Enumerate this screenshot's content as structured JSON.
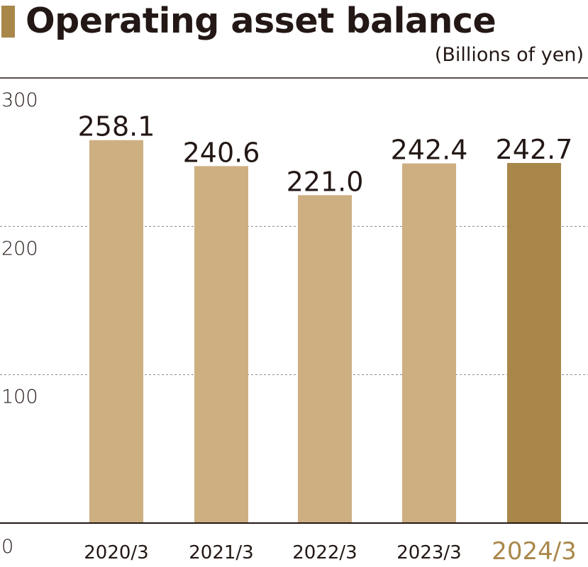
{
  "chart_data": {
    "type": "bar",
    "title": "Operating asset balance",
    "unit": "(Billions of yen)",
    "categories": [
      "2020/3",
      "2021/3",
      "2022/3",
      "2023/3",
      "2024/3"
    ],
    "values": [
      258.1,
      240.6,
      221.0,
      242.4,
      242.7
    ],
    "value_labels": [
      "258.1",
      "240.6",
      "221.0",
      "242.4",
      "242.7"
    ],
    "highlight_index": 4,
    "ylim": [
      0,
      300
    ],
    "yticks": [
      0,
      100,
      200,
      300
    ],
    "ytick_labels": [
      "0",
      "100",
      "200",
      "300"
    ],
    "grid": "dashed at 100 and 200",
    "colors": {
      "bar": "#cdaf82",
      "bar_highlight": "#a9874a",
      "highlight_label": "#a9874a",
      "text": "#231815",
      "axis": "#231815",
      "grid": "#8a8a8a"
    }
  }
}
